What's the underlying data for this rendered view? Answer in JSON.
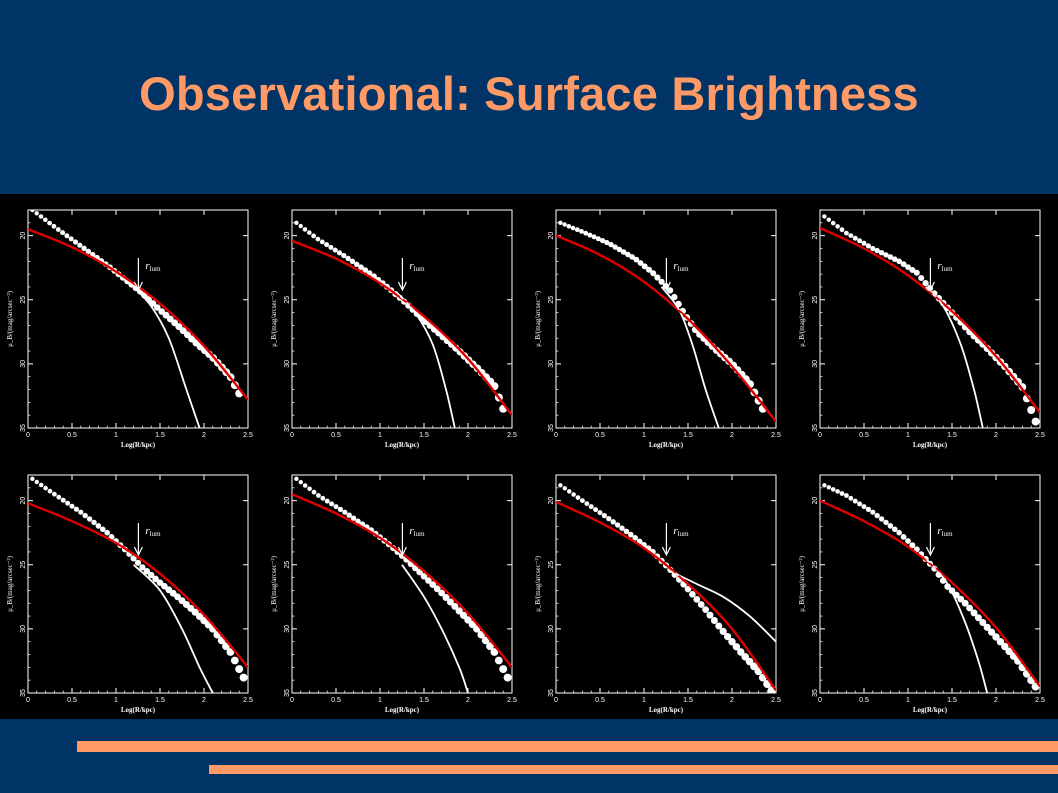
{
  "slide": {
    "title": "Observational: Surface Brightness"
  },
  "colors": {
    "background": "#003366",
    "title": "#ff9966",
    "accent_lines": "#ff9966",
    "figure_background": "#000000",
    "fit_curve": "#dd0000",
    "data_points": "#ffffff",
    "component_curve": "#ffffff"
  },
  "chart_data": [
    {
      "type": "scatter",
      "xlabel": "Log(R/kpc)",
      "ylabel": "μ_B/(mag/arcsec⁻²)",
      "annotation": "r_lum",
      "xlim": [
        0,
        2.5
      ],
      "ylim": [
        35,
        18
      ],
      "x_ticks": [
        "0",
        "0.5",
        "1",
        "1.5",
        "2",
        "2.5"
      ],
      "y_ticks": [
        "20",
        "25",
        "30",
        "35"
      ],
      "r_lum_x": 1.3,
      "series": [
        {
          "kind": "points",
          "x": [
            0.05,
            0.3,
            0.6,
            0.9,
            1.1,
            1.3,
            1.5,
            1.7,
            1.9,
            2.1,
            2.3,
            2.4
          ],
          "y": [
            18.0,
            19.3,
            20.8,
            22.3,
            23.4,
            24.5,
            25.8,
            27.0,
            28.3,
            29.5,
            31.0,
            32.3
          ]
        },
        {
          "kind": "fit",
          "x": [
            0,
            0.5,
            1,
            1.5,
            2,
            2.5
          ],
          "y": [
            19.5,
            20.9,
            22.8,
            25.3,
            28.6,
            32.8
          ]
        },
        {
          "kind": "component",
          "x": [
            1.2,
            1.4,
            1.6,
            1.8,
            1.95
          ],
          "y": [
            24.0,
            25.5,
            28.0,
            32.0,
            35.0
          ]
        }
      ]
    },
    {
      "type": "scatter",
      "xlabel": "Log(R/kpc)",
      "ylabel": "μ_B/(mag/arcsec⁻²)",
      "annotation": "r_lum",
      "xlim": [
        0,
        2.5
      ],
      "ylim": [
        35,
        18
      ],
      "x_ticks": [
        "0",
        "0.5",
        "1",
        "1.5",
        "2",
        "2.5"
      ],
      "y_ticks": [
        "20",
        "25",
        "30",
        "35"
      ],
      "r_lum_x": 1.3,
      "series": [
        {
          "kind": "points",
          "x": [
            0.05,
            0.3,
            0.6,
            0.9,
            1.1,
            1.3,
            1.5,
            1.7,
            1.9,
            2.1,
            2.3,
            2.4
          ],
          "y": [
            19.0,
            20.3,
            21.6,
            23.0,
            24.1,
            25.3,
            26.6,
            27.8,
            29.0,
            30.3,
            31.7,
            33.5
          ]
        },
        {
          "kind": "fit",
          "x": [
            0,
            0.5,
            1,
            1.5,
            2,
            2.5
          ],
          "y": [
            20.4,
            21.8,
            23.7,
            26.3,
            29.6,
            34.0
          ]
        },
        {
          "kind": "component",
          "x": [
            1.2,
            1.4,
            1.6,
            1.75,
            1.85
          ],
          "y": [
            24.5,
            26.0,
            28.5,
            32.0,
            35.0
          ]
        }
      ]
    },
    {
      "type": "scatter",
      "xlabel": "Log(R/kpc)",
      "ylabel": "μ_B/(mag/arcsec⁻²)",
      "annotation": "r_lum",
      "xlim": [
        0,
        2.5
      ],
      "ylim": [
        35,
        18
      ],
      "x_ticks": [
        "0",
        "0.5",
        "1",
        "1.5",
        "2",
        "2.5"
      ],
      "y_ticks": [
        "20",
        "25",
        "30",
        "35"
      ],
      "r_lum_x": 1.3,
      "series": [
        {
          "kind": "points",
          "x": [
            0.05,
            0.3,
            0.6,
            0.9,
            1.1,
            1.3,
            1.45,
            1.6,
            1.8,
            2.0,
            2.2,
            2.35
          ],
          "y": [
            19.0,
            19.7,
            20.6,
            21.8,
            22.9,
            24.3,
            26.0,
            27.5,
            28.8,
            30.0,
            31.5,
            33.5
          ]
        },
        {
          "kind": "fit",
          "x": [
            0,
            0.5,
            1,
            1.5,
            2,
            2.5
          ],
          "y": [
            20.0,
            21.5,
            23.6,
            26.5,
            30.2,
            34.5
          ]
        },
        {
          "kind": "component",
          "x": [
            1.2,
            1.4,
            1.55,
            1.7,
            1.85
          ],
          "y": [
            24.0,
            25.8,
            28.5,
            32.0,
            35.0
          ]
        }
      ]
    },
    {
      "type": "scatter",
      "xlabel": "Log(R/kpc)",
      "ylabel": "μ_B/(mag/arcsec⁻²)",
      "annotation": "r_lum",
      "xlim": [
        0,
        2.5
      ],
      "ylim": [
        35,
        18
      ],
      "x_ticks": [
        "0",
        "0.5",
        "1",
        "1.5",
        "2",
        "2.5"
      ],
      "y_ticks": [
        "20",
        "25",
        "30",
        "35"
      ],
      "r_lum_x": 1.3,
      "series": [
        {
          "kind": "points",
          "x": [
            0.05,
            0.3,
            0.6,
            0.9,
            1.1,
            1.3,
            1.5,
            1.7,
            1.9,
            2.1,
            2.3,
            2.45
          ],
          "y": [
            18.5,
            19.8,
            21.0,
            22.0,
            22.9,
            24.5,
            26.0,
            27.5,
            28.8,
            30.2,
            31.8,
            34.5
          ]
        },
        {
          "kind": "fit",
          "x": [
            0,
            0.5,
            1,
            1.5,
            2,
            2.5
          ],
          "y": [
            19.4,
            21.0,
            23.1,
            25.9,
            29.4,
            33.8
          ]
        },
        {
          "kind": "component",
          "x": [
            1.2,
            1.4,
            1.6,
            1.75,
            1.85
          ],
          "y": [
            24.0,
            25.5,
            28.5,
            32.0,
            35.0
          ]
        }
      ]
    },
    {
      "type": "scatter",
      "xlabel": "Log(R/kpc)",
      "ylabel": "μ_B/(mag/arcsec⁻²)",
      "annotation": "r_lum",
      "xlim": [
        0,
        2.5
      ],
      "ylim": [
        35,
        18
      ],
      "x_ticks": [
        "0",
        "0.5",
        "1",
        "1.5",
        "2",
        "2.5"
      ],
      "y_ticks": [
        "20",
        "25",
        "30",
        "35"
      ],
      "r_lum_x": 1.3,
      "series": [
        {
          "kind": "points",
          "x": [
            0.05,
            0.3,
            0.6,
            0.9,
            1.1,
            1.3,
            1.5,
            1.7,
            1.9,
            2.1,
            2.3,
            2.45
          ],
          "y": [
            18.3,
            19.5,
            20.9,
            22.5,
            23.8,
            25.2,
            26.4,
            27.5,
            28.7,
            30.0,
            31.8,
            33.8
          ]
        },
        {
          "kind": "fit",
          "x": [
            0,
            0.5,
            1,
            1.5,
            2,
            2.5
          ],
          "y": [
            20.2,
            21.6,
            23.3,
            25.7,
            28.9,
            33.0
          ]
        },
        {
          "kind": "component",
          "x": [
            1.2,
            1.5,
            1.75,
            1.95,
            2.1
          ],
          "y": [
            25.0,
            27.0,
            30.0,
            33.0,
            35.0
          ]
        }
      ]
    },
    {
      "type": "scatter",
      "xlabel": "Log(R/kpc)",
      "ylabel": "μ_B/(mag/arcsec⁻²)",
      "annotation": "r_lum",
      "xlim": [
        0,
        2.5
      ],
      "ylim": [
        35,
        18
      ],
      "x_ticks": [
        "0",
        "0.5",
        "1",
        "1.5",
        "2",
        "2.5"
      ],
      "y_ticks": [
        "20",
        "25",
        "30",
        "35"
      ],
      "r_lum_x": 1.3,
      "series": [
        {
          "kind": "points",
          "x": [
            0.05,
            0.3,
            0.6,
            0.9,
            1.1,
            1.3,
            1.5,
            1.7,
            1.9,
            2.1,
            2.3,
            2.45
          ],
          "y": [
            18.3,
            19.6,
            20.9,
            22.3,
            23.4,
            24.6,
            25.9,
            27.2,
            28.6,
            30.0,
            31.8,
            33.8
          ]
        },
        {
          "kind": "fit",
          "x": [
            0,
            0.5,
            1,
            1.5,
            2,
            2.5
          ],
          "y": [
            19.5,
            21.0,
            22.9,
            25.5,
            28.8,
            33.0
          ]
        },
        {
          "kind": "component",
          "x": [
            1.25,
            1.5,
            1.7,
            1.9,
            2.0
          ],
          "y": [
            25.0,
            27.5,
            30.0,
            33.0,
            35.0
          ]
        }
      ]
    },
    {
      "type": "scatter",
      "xlabel": "Log(R/kpc)",
      "ylabel": "μ_B/(mag/arcsec⁻²)",
      "annotation": "r_lum",
      "xlim": [
        0,
        2.5
      ],
      "ylim": [
        35,
        18
      ],
      "x_ticks": [
        "0",
        "0.5",
        "1",
        "1.5",
        "2",
        "2.5"
      ],
      "y_ticks": [
        "20",
        "25",
        "30",
        "35"
      ],
      "r_lum_x": 1.3,
      "series": [
        {
          "kind": "points",
          "x": [
            0.05,
            0.3,
            0.6,
            0.9,
            1.1,
            1.3,
            1.5,
            1.7,
            1.9,
            2.1,
            2.3,
            2.45
          ],
          "y": [
            18.8,
            20.0,
            21.4,
            22.9,
            24.0,
            25.4,
            26.9,
            28.5,
            30.2,
            31.8,
            33.3,
            34.8
          ]
        },
        {
          "kind": "fit",
          "x": [
            0,
            0.5,
            1,
            1.5,
            2,
            2.5
          ],
          "y": [
            20.1,
            21.7,
            23.7,
            26.5,
            30.0,
            34.8
          ]
        },
        {
          "kind": "component",
          "x": [
            1.3,
            1.6,
            1.9,
            2.2,
            2.5
          ],
          "y": [
            25.5,
            26.5,
            27.5,
            29.0,
            31.0
          ]
        }
      ]
    },
    {
      "type": "scatter",
      "xlabel": "Log(R/kpc)",
      "ylabel": "μ_B/(mag/arcsec⁻²)",
      "annotation": "r_lum",
      "xlim": [
        0,
        2.5
      ],
      "ylim": [
        35,
        18
      ],
      "x_ticks": [
        "0",
        "0.5",
        "1",
        "1.5",
        "2",
        "2.5"
      ],
      "y_ticks": [
        "20",
        "25",
        "30",
        "35"
      ],
      "r_lum_x": 1.3,
      "series": [
        {
          "kind": "points",
          "x": [
            0.05,
            0.3,
            0.6,
            0.9,
            1.1,
            1.3,
            1.45,
            1.65,
            1.85,
            2.05,
            2.25,
            2.45
          ],
          "y": [
            18.8,
            19.6,
            20.9,
            22.5,
            23.8,
            25.3,
            26.7,
            28.0,
            29.5,
            31.0,
            32.5,
            34.5
          ]
        },
        {
          "kind": "fit",
          "x": [
            0,
            0.5,
            1,
            1.5,
            2,
            2.5
          ],
          "y": [
            20.0,
            21.6,
            23.6,
            26.4,
            29.9,
            34.5
          ]
        },
        {
          "kind": "component",
          "x": [
            1.2,
            1.45,
            1.65,
            1.8,
            1.9
          ],
          "y": [
            24.5,
            26.5,
            29.5,
            32.5,
            35.0
          ]
        }
      ]
    }
  ]
}
